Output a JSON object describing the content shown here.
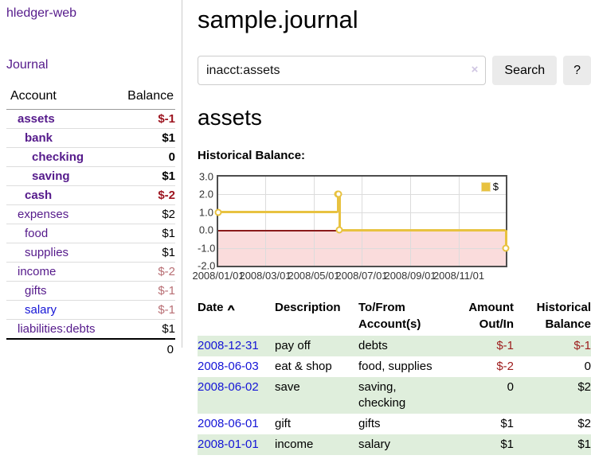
{
  "app": {
    "title": "hledger-web"
  },
  "sidebar": {
    "journal_link": "Journal",
    "accounts_table": {
      "headers": [
        "Account",
        "Balance"
      ],
      "rows": [
        {
          "name": "assets",
          "level": 1,
          "bold": true,
          "link": "visited",
          "balance": "$-1",
          "balance_style": "neg-strong"
        },
        {
          "name": "bank",
          "level": 2,
          "bold": true,
          "link": "visited",
          "balance": "$1",
          "balance_style": "pos"
        },
        {
          "name": "checking",
          "level": 3,
          "bold": true,
          "link": "visited",
          "balance": "0",
          "balance_style": "pos"
        },
        {
          "name": "saving",
          "level": 3,
          "bold": true,
          "link": "visited",
          "balance": "$1",
          "balance_style": "pos"
        },
        {
          "name": "cash",
          "level": 2,
          "bold": true,
          "link": "visited",
          "balance": "$-2",
          "balance_style": "neg-strong"
        },
        {
          "name": "expenses",
          "level": 1,
          "bold": false,
          "link": "visited",
          "balance": "$2",
          "balance_style": "pos"
        },
        {
          "name": "food",
          "level": 2,
          "bold": false,
          "link": "visited",
          "balance": "$1",
          "balance_style": "pos"
        },
        {
          "name": "supplies",
          "level": 2,
          "bold": false,
          "link": "visited",
          "balance": "$1",
          "balance_style": "pos"
        },
        {
          "name": "income",
          "level": 1,
          "bold": false,
          "link": "visited",
          "balance": "$-2",
          "balance_style": "neg-light"
        },
        {
          "name": "gifts",
          "level": 2,
          "bold": false,
          "link": "visited",
          "balance": "$-1",
          "balance_style": "neg-light"
        },
        {
          "name": "salary",
          "level": 2,
          "bold": false,
          "link": "new",
          "balance": "$-1",
          "balance_style": "neg-light"
        },
        {
          "name": "liabilities:debts",
          "level": 1,
          "bold": false,
          "link": "visited",
          "balance": "$1",
          "balance_style": "pos"
        }
      ],
      "total": "0"
    }
  },
  "main": {
    "title": "sample.journal",
    "search": {
      "value": "inacct:assets",
      "clear_icon": "×",
      "search_label": "Search",
      "help_label": "?"
    },
    "account_heading": "assets",
    "register_table": {
      "headers": [
        "Date",
        "Description",
        "To/From Account(s)",
        "Amount Out/In",
        "Historical Balance"
      ],
      "sort_icon": "∧",
      "rows": [
        {
          "date": "2008-12-31",
          "description": "pay off",
          "accounts": "debts",
          "amount": "$-1",
          "balance": "$-1",
          "amount_neg": true,
          "balance_neg": true,
          "shaded": true
        },
        {
          "date": "2008-06-03",
          "description": "eat & shop",
          "accounts": "food, supplies",
          "amount": "$-2",
          "balance": "0",
          "amount_neg": true,
          "balance_neg": false,
          "shaded": false
        },
        {
          "date": "2008-06-02",
          "description": "save",
          "accounts": "saving, checking",
          "amount": "0",
          "balance": "$2",
          "amount_neg": false,
          "balance_neg": false,
          "shaded": true
        },
        {
          "date": "2008-06-01",
          "description": "gift",
          "accounts": "gifts",
          "amount": "$1",
          "balance": "$2",
          "amount_neg": false,
          "balance_neg": false,
          "shaded": false
        },
        {
          "date": "2008-01-01",
          "description": "income",
          "accounts": "salary",
          "amount": "$1",
          "balance": "$1",
          "amount_neg": false,
          "balance_neg": false,
          "shaded": true
        }
      ]
    }
  },
  "chart_data": {
    "type": "line",
    "title": "Historical Balance:",
    "step": true,
    "x_range": [
      "2008-01-01",
      "2008-12-31"
    ],
    "ylim": [
      -2,
      3
    ],
    "y_ticks": [
      {
        "label": "3.0",
        "value": 3
      },
      {
        "label": "2.0",
        "value": 2
      },
      {
        "label": "1.0",
        "value": 1
      },
      {
        "label": "0.0",
        "value": 0
      },
      {
        "label": "-1.0",
        "value": -1
      },
      {
        "label": "-2.0",
        "value": -2
      }
    ],
    "x_ticks": [
      {
        "label": "2008/01/01",
        "date": "2008-01-01"
      },
      {
        "label": "2008/03/01",
        "date": "2008-03-01"
      },
      {
        "label": "2008/05/01",
        "date": "2008-05-01"
      },
      {
        "label": "2008/07/01",
        "date": "2008-07-01"
      },
      {
        "label": "2008/09/01",
        "date": "2008-09-01"
      },
      {
        "label": "2008/11/01",
        "date": "2008-11-01"
      }
    ],
    "series": [
      {
        "name": "$",
        "color": "#e8c240",
        "points": [
          [
            "2008-01-01",
            1
          ],
          [
            "2008-06-01",
            2
          ],
          [
            "2008-06-02",
            2
          ],
          [
            "2008-06-03",
            0
          ],
          [
            "2008-12-31",
            -1
          ]
        ]
      }
    ],
    "legend_position": "top-right",
    "grid": true,
    "colors": {
      "grid": "#dcdcdc",
      "border": "#4d4d4d",
      "negative_region": "#fadcdc",
      "zero_line": "#8b1a1a"
    }
  }
}
